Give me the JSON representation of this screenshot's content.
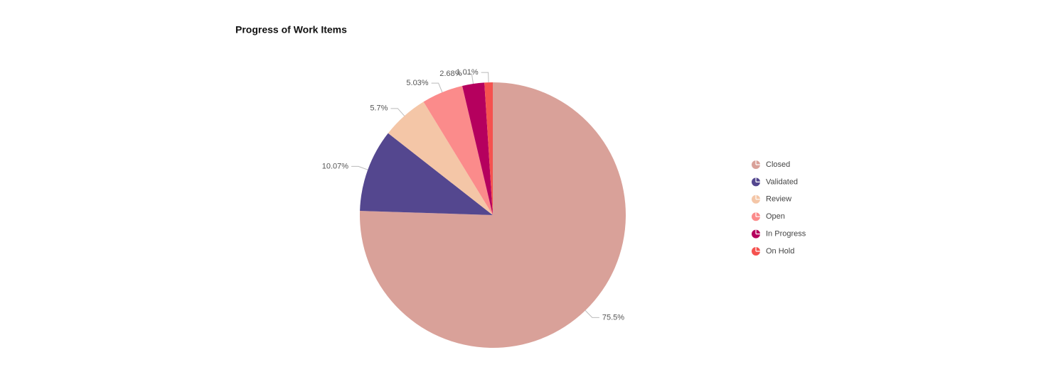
{
  "chart_data": {
    "type": "pie",
    "title": "Progress of Work Items",
    "categories": [
      "Closed",
      "Validated",
      "Review",
      "Open",
      "In Progress",
      "On Hold"
    ],
    "values": [
      75.5,
      10.07,
      5.7,
      5.03,
      2.68,
      1.01
    ],
    "value_labels": [
      "75.5%",
      "10.07%",
      "5.7%",
      "5.03%",
      "2.68%",
      "1.01%"
    ],
    "colors": [
      "#d9a199",
      "#54478f",
      "#f4c6a7",
      "#fb8b8b",
      "#b5005e",
      "#f5524f"
    ],
    "legend": "right"
  }
}
